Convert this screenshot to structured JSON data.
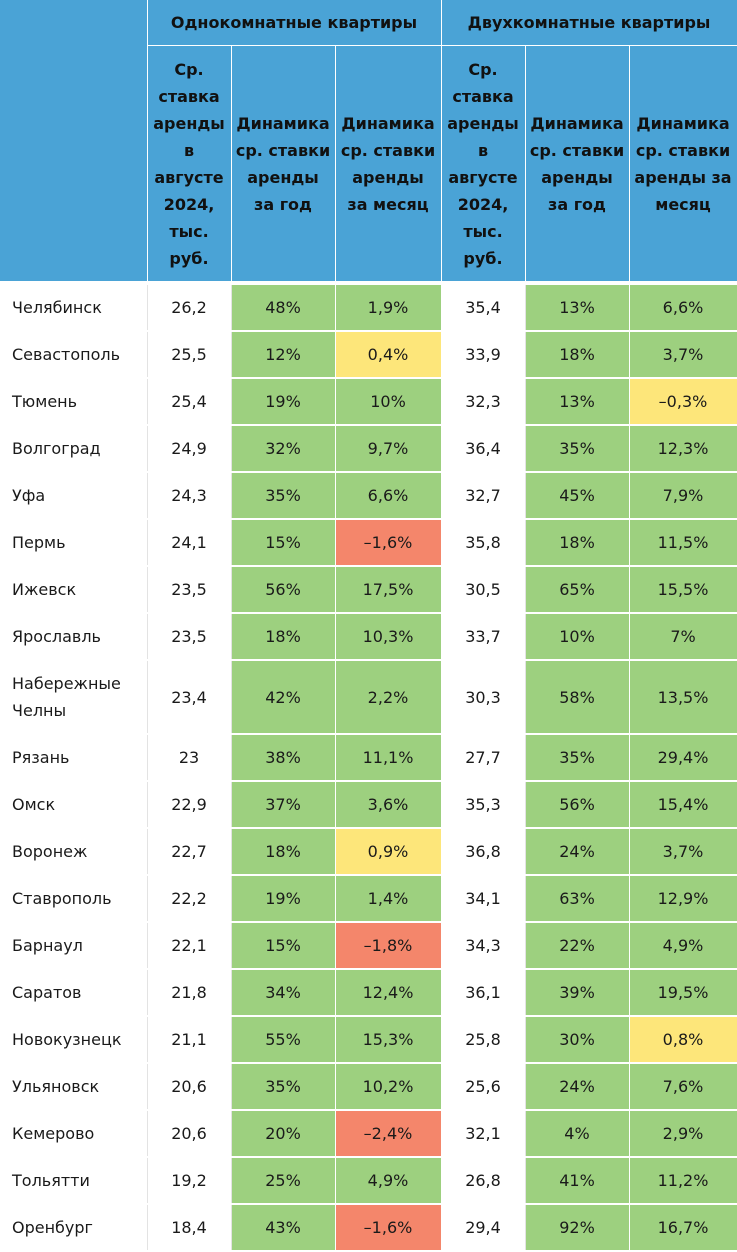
{
  "groups": {
    "one_room": "Однокомнатные квартиры",
    "two_room": "Двухкомнатные квартиры"
  },
  "columns": {
    "avg_rate": "Ср. ставка аренды в августе 2024, тыс. руб.",
    "year_dyn": "Динамика ср. ставки аренды за год",
    "month_dyn": "Динамика ср. ставки аренды за месяц"
  },
  "colors": {
    "header": "#4aa3d6",
    "green": "#9dd07f",
    "yellow": "#fde67a",
    "red": "#f4866b"
  },
  "rows": [
    {
      "city": "Челябинск",
      "r1": "26,2",
      "y1": "48%",
      "m1": "1,9%",
      "m1c": "g",
      "r2": "35,4",
      "y2": "13%",
      "m2": "6,6%",
      "m2c": "g"
    },
    {
      "city": "Севастополь",
      "r1": "25,5",
      "y1": "12%",
      "m1": "0,4%",
      "m1c": "y",
      "r2": "33,9",
      "y2": "18%",
      "m2": "3,7%",
      "m2c": "g"
    },
    {
      "city": "Тюмень",
      "r1": "25,4",
      "y1": "19%",
      "m1": "10%",
      "m1c": "g",
      "r2": "32,3",
      "y2": "13%",
      "m2": "–0,3%",
      "m2c": "y"
    },
    {
      "city": "Волгоград",
      "r1": "24,9",
      "y1": "32%",
      "m1": "9,7%",
      "m1c": "g",
      "r2": "36,4",
      "y2": "35%",
      "m2": "12,3%",
      "m2c": "g"
    },
    {
      "city": "Уфа",
      "r1": "24,3",
      "y1": "35%",
      "m1": "6,6%",
      "m1c": "g",
      "r2": "32,7",
      "y2": "45%",
      "m2": "7,9%",
      "m2c": "g"
    },
    {
      "city": "Пермь",
      "r1": "24,1",
      "y1": "15%",
      "m1": "–1,6%",
      "m1c": "r",
      "r2": "35,8",
      "y2": "18%",
      "m2": "11,5%",
      "m2c": "g"
    },
    {
      "city": "Ижевск",
      "r1": "23,5",
      "y1": "56%",
      "m1": "17,5%",
      "m1c": "g",
      "r2": "30,5",
      "y2": "65%",
      "m2": "15,5%",
      "m2c": "g"
    },
    {
      "city": "Ярославль",
      "r1": "23,5",
      "y1": "18%",
      "m1": "10,3%",
      "m1c": "g",
      "r2": "33,7",
      "y2": "10%",
      "m2": "7%",
      "m2c": "g"
    },
    {
      "city": "Набережные Челны",
      "r1": "23,4",
      "y1": "42%",
      "m1": "2,2%",
      "m1c": "g",
      "r2": "30,3",
      "y2": "58%",
      "m2": "13,5%",
      "m2c": "g",
      "tall": true
    },
    {
      "city": "Рязань",
      "r1": "23",
      "y1": "38%",
      "m1": "11,1%",
      "m1c": "g",
      "r2": "27,7",
      "y2": "35%",
      "m2": "29,4%",
      "m2c": "g"
    },
    {
      "city": "Омск",
      "r1": "22,9",
      "y1": "37%",
      "m1": "3,6%",
      "m1c": "g",
      "r2": "35,3",
      "y2": "56%",
      "m2": "15,4%",
      "m2c": "g"
    },
    {
      "city": "Воронеж",
      "r1": "22,7",
      "y1": "18%",
      "m1": "0,9%",
      "m1c": "y",
      "r2": "36,8",
      "y2": "24%",
      "m2": "3,7%",
      "m2c": "g"
    },
    {
      "city": "Ставрополь",
      "r1": "22,2",
      "y1": "19%",
      "m1": "1,4%",
      "m1c": "g",
      "r2": "34,1",
      "y2": "63%",
      "m2": "12,9%",
      "m2c": "g"
    },
    {
      "city": "Барнаул",
      "r1": "22,1",
      "y1": "15%",
      "m1": "–1,8%",
      "m1c": "r",
      "r2": "34,3",
      "y2": "22%",
      "m2": "4,9%",
      "m2c": "g"
    },
    {
      "city": "Саратов",
      "r1": "21,8",
      "y1": "34%",
      "m1": "12,4%",
      "m1c": "g",
      "r2": "36,1",
      "y2": "39%",
      "m2": "19,5%",
      "m2c": "g"
    },
    {
      "city": "Новокузнецк",
      "r1": "21,1",
      "y1": "55%",
      "m1": "15,3%",
      "m1c": "g",
      "r2": "25,8",
      "y2": "30%",
      "m2": "0,8%",
      "m2c": "y"
    },
    {
      "city": "Ульяновск",
      "r1": "20,6",
      "y1": "35%",
      "m1": "10,2%",
      "m1c": "g",
      "r2": "25,6",
      "y2": "24%",
      "m2": "7,6%",
      "m2c": "g"
    },
    {
      "city": "Кемерово",
      "r1": "20,6",
      "y1": "20%",
      "m1": "–2,4%",
      "m1c": "r",
      "r2": "32,1",
      "y2": "4%",
      "m2": "2,9%",
      "m2c": "g"
    },
    {
      "city": "Тольятти",
      "r1": "19,2",
      "y1": "25%",
      "m1": "4,9%",
      "m1c": "g",
      "r2": "26,8",
      "y2": "41%",
      "m2": "11,2%",
      "m2c": "g"
    },
    {
      "city": "Оренбург",
      "r1": "18,4",
      "y1": "43%",
      "m1": "–1,6%",
      "m1c": "r",
      "r2": "29,4",
      "y2": "92%",
      "m2": "16,7%",
      "m2c": "g"
    }
  ]
}
